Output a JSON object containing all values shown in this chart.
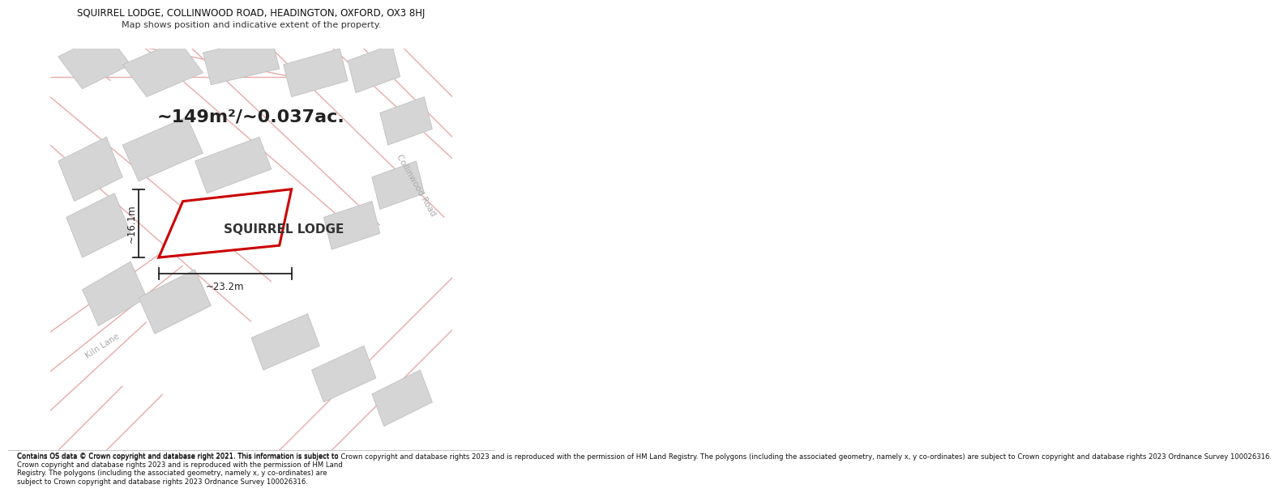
{
  "title_line1": "SQUIRREL LODGE, COLLINWOOD ROAD, HEADINGTON, OXFORD, OX3 8HJ",
  "title_line2": "Map shows position and indicative extent of the property.",
  "area_text": "~149m²/~0.037ac.",
  "property_label": "SQUIRREL LODGE",
  "dim_width": "~23.2m",
  "dim_height": "~16.1m",
  "road_label_collinwood": "Collinwood Road",
  "road_label_kiln": "Kiln Lane",
  "footer_text": "Contains OS data © Crown copyright and database right 2021. This information is subject to Crown copyright and database rights 2023 and is reproduced with the permission of HM Land Registry. The polygons (including the associated geometry, namely x, y co-ordinates) are subject to Crown copyright and database rights 2023 Ordnance Survey 100026316.",
  "map_bg": "#f0f0f0",
  "building_color": "#d5d5d5",
  "building_edge": "#c0c0c0",
  "property_fill": "#ffffff",
  "property_outline": "#cc0000",
  "road_line_color": "#e8aaaa",
  "dim_color": "#222222",
  "road_label_color": "#aaaaaa",
  "title1_fontsize": 8.5,
  "title2_fontsize": 8.0,
  "area_fontsize": 16,
  "label_fontsize": 11,
  "dim_fontsize": 8.5,
  "road_label_fontsize": 7.5
}
